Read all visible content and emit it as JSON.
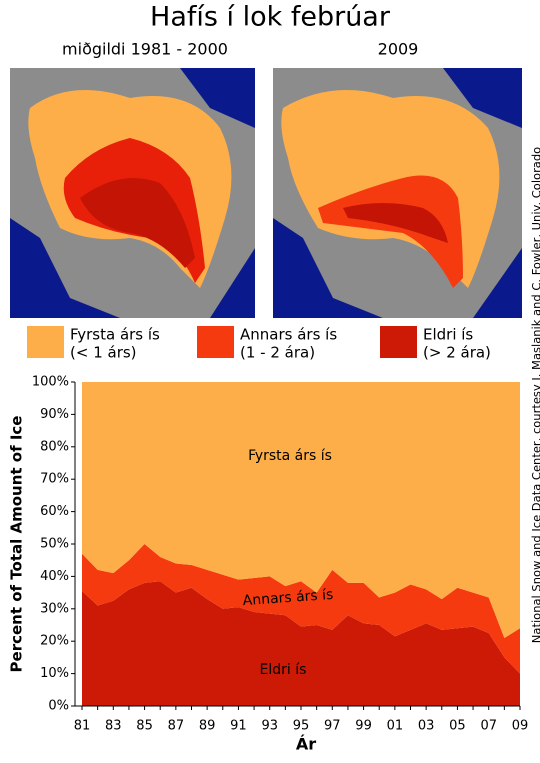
{
  "title": "Hafís í lok febrúar",
  "maps": [
    {
      "caption": "miðgildi 1981 - 2000"
    },
    {
      "caption": "2009"
    }
  ],
  "credit": "National Snow and Ice Data Center, courtesy J. Maslanik and C. Fowler, Univ. Colorado",
  "chart_data": {
    "type": "stacked-area",
    "x_label": "Ár",
    "y_label": "Percent of Total Amount of Ice",
    "categories": [
      "81",
      null,
      "83",
      null,
      "85",
      null,
      "87",
      null,
      "89",
      null,
      "91",
      null,
      "93",
      null,
      "95",
      null,
      "97",
      null,
      "99",
      null,
      "01",
      null,
      "03",
      null,
      "05",
      null,
      "07",
      null,
      "09"
    ],
    "series": [
      {
        "name": "Eldri ís",
        "sublabel": "(> 2 ára)",
        "color": "#cc1a06",
        "values": [
          35.5,
          31,
          32.5,
          36,
          38,
          38.5,
          35,
          36.5,
          33,
          30,
          30.5,
          29,
          28.5,
          28,
          24.5,
          25,
          23.5,
          28,
          25.5,
          25,
          21.5,
          23.5,
          25.5,
          23.5,
          24,
          24.5,
          22.5,
          15,
          10
        ]
      },
      {
        "name": "Annars árs ís",
        "sublabel": "(1 - 2 ára)",
        "color": "#f53a10",
        "values": [
          11.5,
          11,
          8.5,
          9,
          12,
          7.5,
          9,
          7,
          9,
          10.5,
          8.5,
          10.5,
          11.5,
          9,
          14,
          10,
          18.5,
          10,
          12.5,
          8.5,
          13.5,
          14,
          10.5,
          9.5,
          12.5,
          10.5,
          11,
          6,
          14
        ]
      },
      {
        "name": "Fyrsta árs ís",
        "sublabel": "(< 1 árs)",
        "color": "#fdae48",
        "values": [
          53,
          58,
          59,
          55,
          50,
          54,
          56,
          56.5,
          58,
          59.5,
          61,
          60.5,
          60,
          63,
          61.5,
          65,
          58,
          62,
          62,
          66.5,
          65,
          62.5,
          64,
          67,
          63.5,
          65,
          66.5,
          79,
          76
        ]
      }
    ],
    "ylim": [
      0,
      100
    ],
    "yticks": [
      {
        "value": 0,
        "label": "0%"
      },
      {
        "value": 10,
        "label": "10%"
      },
      {
        "value": 20,
        "label": "20%"
      },
      {
        "value": 30,
        "label": "30%"
      },
      {
        "value": 40,
        "label": "40%"
      },
      {
        "value": 50,
        "label": "50%"
      },
      {
        "value": 60,
        "label": "60%"
      },
      {
        "value": 70,
        "label": "70%"
      },
      {
        "value": 80,
        "label": "80%"
      },
      {
        "value": 90,
        "label": "90%"
      },
      {
        "value": 100,
        "label": "100%"
      }
    ]
  }
}
